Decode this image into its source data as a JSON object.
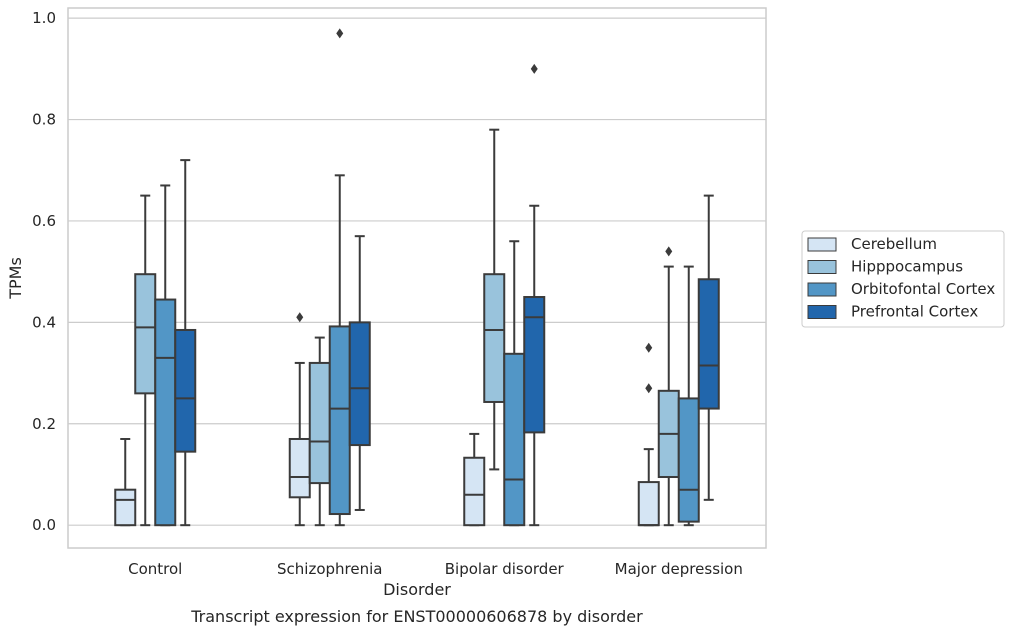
{
  "chart_data": {
    "type": "box",
    "title": "",
    "caption": "Transcript expression for ENST00000606878 by disorder",
    "xlabel": "Disorder",
    "ylabel": "TPMs",
    "ylim": [
      -0.045,
      1.02
    ],
    "yticks": [
      "0.0",
      "0.2",
      "0.4",
      "0.6",
      "0.8",
      "1.0"
    ],
    "grid": true,
    "legend_position": "right",
    "categories": [
      "Control",
      "Schizophrenia",
      "Bipolar disorder",
      "Major depression"
    ],
    "series": [
      {
        "name": "Cerebellum",
        "color": "#d5e5f4",
        "boxes": [
          {
            "whisker_low": 0.0,
            "q1": 0.0,
            "median": 0.05,
            "q3": 0.07,
            "whisker_high": 0.17,
            "outliers": []
          },
          {
            "whisker_low": 0.0,
            "q1": 0.055,
            "median": 0.095,
            "q3": 0.17,
            "whisker_high": 0.32,
            "outliers": [
              0.41
            ]
          },
          {
            "whisker_low": 0.0,
            "q1": 0.0,
            "median": 0.06,
            "q3": 0.133,
            "whisker_high": 0.18,
            "outliers": []
          },
          {
            "whisker_low": 0.0,
            "q1": 0.0,
            "median": 0.0,
            "q3": 0.085,
            "whisker_high": 0.15,
            "outliers": [
              0.27,
              0.35
            ]
          }
        ]
      },
      {
        "name": "Hipppocampus",
        "color": "#99c3dc",
        "boxes": [
          {
            "whisker_low": 0.0,
            "q1": 0.26,
            "median": 0.39,
            "q3": 0.495,
            "whisker_high": 0.65,
            "outliers": []
          },
          {
            "whisker_low": 0.0,
            "q1": 0.083,
            "median": 0.165,
            "q3": 0.32,
            "whisker_high": 0.37,
            "outliers": []
          },
          {
            "whisker_low": 0.11,
            "q1": 0.243,
            "median": 0.385,
            "q3": 0.495,
            "whisker_high": 0.78,
            "outliers": []
          },
          {
            "whisker_low": 0.0,
            "q1": 0.095,
            "median": 0.18,
            "q3": 0.265,
            "whisker_high": 0.51,
            "outliers": [
              0.54
            ]
          }
        ]
      },
      {
        "name": "Orbitofontal Cortex",
        "color": "#5296c6",
        "boxes": [
          {
            "whisker_low": 0.0,
            "q1": 0.0,
            "median": 0.33,
            "q3": 0.445,
            "whisker_high": 0.67,
            "outliers": []
          },
          {
            "whisker_low": 0.0,
            "q1": 0.022,
            "median": 0.23,
            "q3": 0.392,
            "whisker_high": 0.69,
            "outliers": [
              0.97
            ]
          },
          {
            "whisker_low": 0.0,
            "q1": 0.0,
            "median": 0.09,
            "q3": 0.338,
            "whisker_high": 0.56,
            "outliers": []
          },
          {
            "whisker_low": 0.0,
            "q1": 0.007,
            "median": 0.07,
            "q3": 0.25,
            "whisker_high": 0.51,
            "outliers": []
          }
        ]
      },
      {
        "name": "Prefrontal Cortex",
        "color": "#2166ac",
        "boxes": [
          {
            "whisker_low": 0.0,
            "q1": 0.145,
            "median": 0.25,
            "q3": 0.385,
            "whisker_high": 0.72,
            "outliers": []
          },
          {
            "whisker_low": 0.03,
            "q1": 0.158,
            "median": 0.27,
            "q3": 0.4,
            "whisker_high": 0.57,
            "outliers": []
          },
          {
            "whisker_low": 0.0,
            "q1": 0.183,
            "median": 0.41,
            "q3": 0.45,
            "whisker_high": 0.63,
            "outliers": [
              0.9
            ]
          },
          {
            "whisker_low": 0.05,
            "q1": 0.23,
            "median": 0.315,
            "q3": 0.485,
            "whisker_high": 0.65,
            "outliers": []
          }
        ]
      }
    ]
  }
}
